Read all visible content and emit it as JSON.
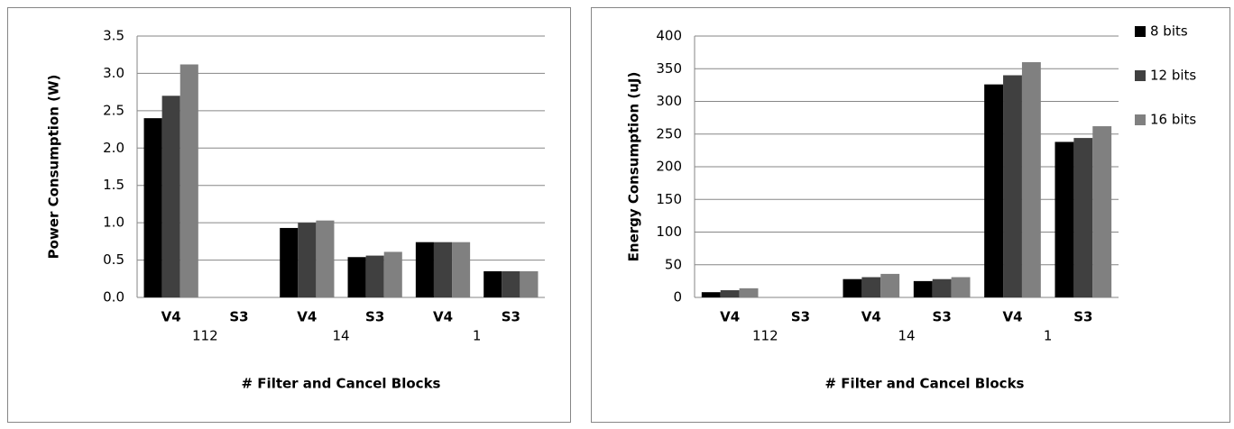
{
  "chart_data": [
    {
      "type": "bar",
      "y_label": "Power Consumption (W)",
      "x_label": "# Filter and Cancel  Blocks",
      "categories": [
        "V4",
        "S3",
        "V4",
        "S3",
        "V4",
        "S3"
      ],
      "groups": [
        "112",
        "14",
        "1"
      ],
      "series": [
        {
          "color": "#000000",
          "values": [
            2.4,
            null,
            0.93,
            0.54,
            0.74,
            0.35
          ]
        },
        {
          "color": "#404040",
          "values": [
            2.7,
            null,
            1.0,
            0.56,
            0.74,
            0.35
          ]
        },
        {
          "color": "#808080",
          "values": [
            3.12,
            null,
            1.03,
            0.61,
            0.74,
            0.35
          ]
        }
      ],
      "ylim": [
        0,
        3.5
      ],
      "yticks": [
        {
          "value": 0,
          "label": "0.0"
        },
        0.5,
        {
          "value": 1,
          "label": "1.0"
        },
        1.5,
        {
          "value": 2,
          "label": "2.0"
        },
        2.5,
        {
          "value": 3,
          "label": "3.0"
        },
        3.5
      ],
      "grid": true
    },
    {
      "type": "bar",
      "y_label": "Energy Consumption (uJ)",
      "x_label": "# Filter and Cancel  Blocks",
      "categories": [
        "V4",
        "S3",
        "V4",
        "S3",
        "V4",
        "S3"
      ],
      "groups": [
        "112",
        "14",
        "1"
      ],
      "series": [
        {
          "name": "8 bits",
          "color": "#000000",
          "values": [
            8,
            null,
            28,
            25,
            326,
            238
          ]
        },
        {
          "name": "12 bits",
          "color": "#404040",
          "values": [
            11,
            null,
            31,
            28,
            340,
            244
          ]
        },
        {
          "name": "16 bits",
          "color": "#808080",
          "values": [
            14,
            null,
            36,
            31,
            360,
            262
          ]
        }
      ],
      "ylim": [
        0,
        400
      ],
      "yticks": [
        0,
        50,
        100,
        150,
        200,
        250,
        300,
        350,
        400
      ],
      "grid": true,
      "legend": "right"
    }
  ]
}
